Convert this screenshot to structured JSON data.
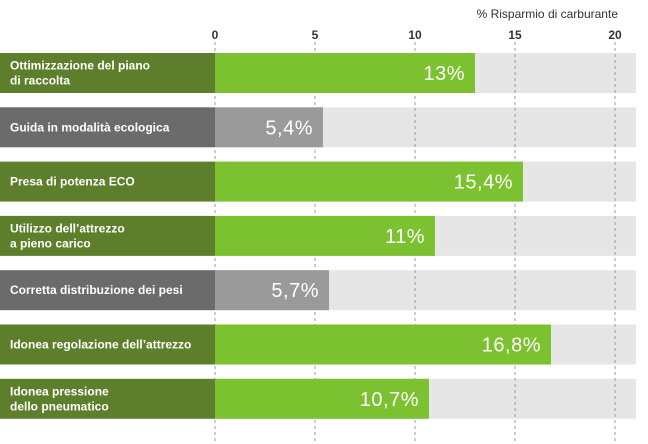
{
  "chart_data": {
    "type": "bar",
    "orientation": "horizontal",
    "title": "",
    "xlabel": "% Risparmio di carburante",
    "ylabel": "",
    "xlim": [
      0,
      21
    ],
    "ticks": [
      0,
      5,
      10,
      15,
      20
    ],
    "tick_labels": [
      "0",
      "5",
      "10",
      "15",
      "20"
    ],
    "grid": true,
    "categories": [
      "Ottimizzazione del piano\ndi raccolta",
      "Guida in modalità ecologica",
      "Presa di potenza ECO",
      "Utilizzo dell’attrezzo\na pieno carico",
      "Corretta distribuzione dei pesi",
      "Idonea regolazione dell’attrezzo",
      "Idonea pressione\ndello pneumatico"
    ],
    "values": [
      13,
      5.4,
      15.4,
      11,
      5.7,
      16.8,
      10.7
    ],
    "value_labels": [
      "13%",
      "5,4%",
      "15,4%",
      "11%",
      "5,7%",
      "16,8%",
      "10,7%"
    ],
    "bar_color_groups": [
      "green",
      "gray",
      "green",
      "green",
      "gray",
      "green",
      "green"
    ],
    "colors": {
      "green_bar": "#7cc230",
      "green_label_bg": "#5d7f2b",
      "gray_bar": "#9a9a9a",
      "gray_label_bg": "#6b6b6b",
      "track": "#e6e6e6",
      "grid": "#9b9b9b",
      "axis_text": "#333333"
    }
  }
}
